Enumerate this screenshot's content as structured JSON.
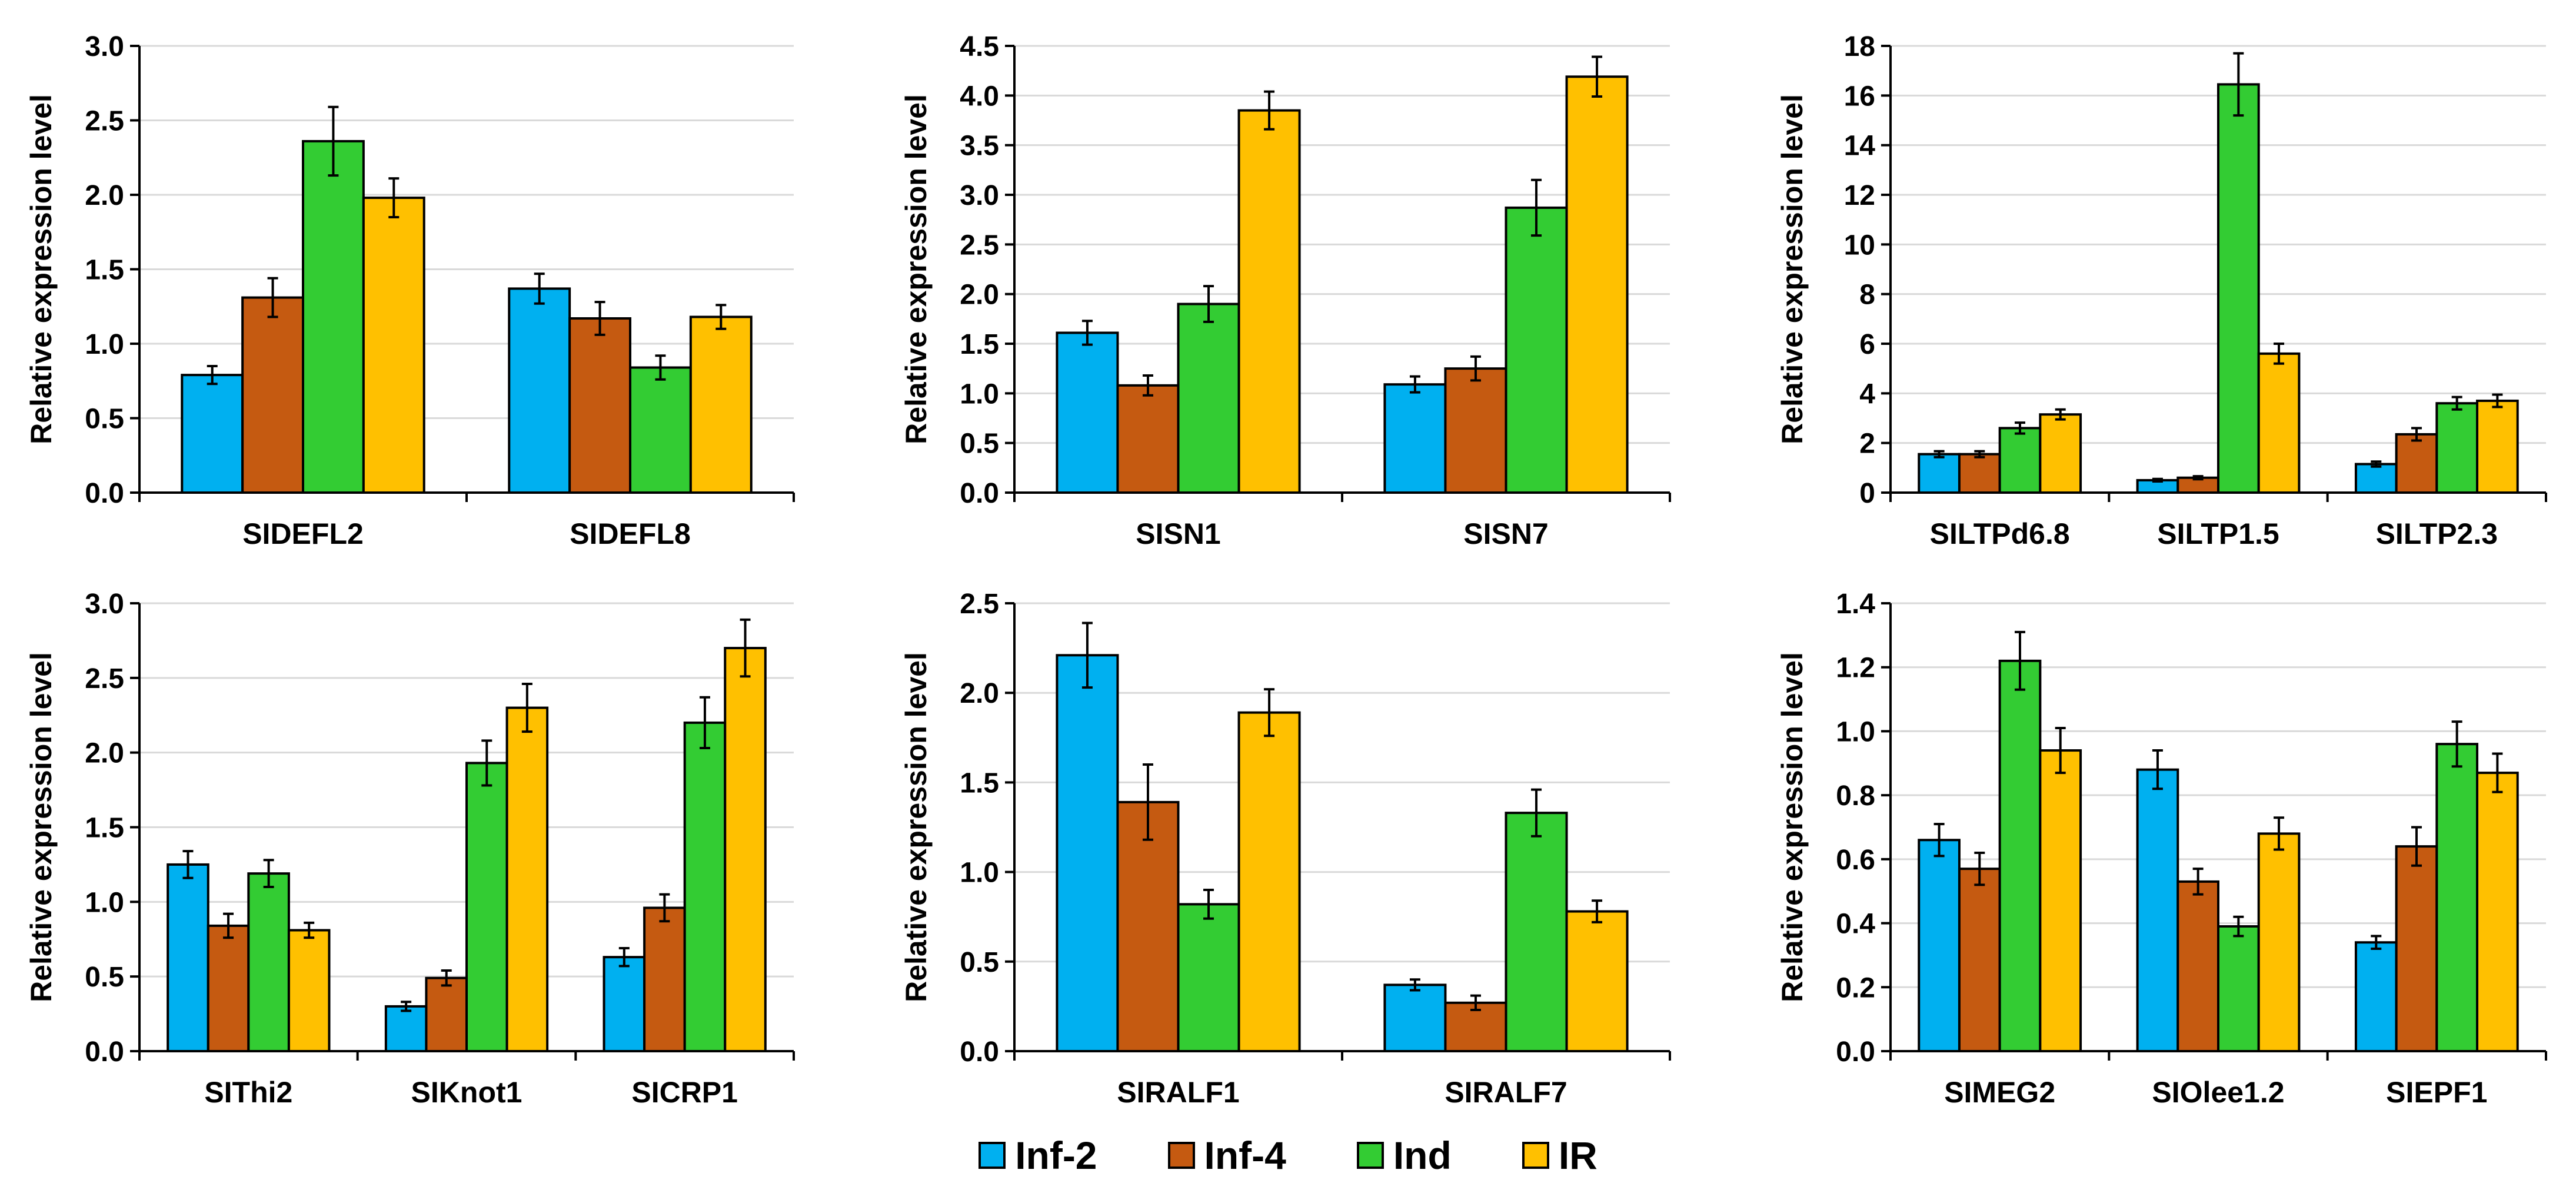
{
  "colors": {
    "Inf-2": "#00B0F0",
    "Inf-4": "#C55A11",
    "Ind": "#33CC33",
    "IR": "#FFC000"
  },
  "legend": [
    {
      "name": "Inf-2",
      "label": "Inf-2",
      "color": "#00B0F0"
    },
    {
      "name": "Inf-4",
      "label": "Inf-4",
      "color": "#C55A11"
    },
    {
      "name": "Ind",
      "label": "Ind",
      "color": "#33CC33"
    },
    {
      "name": "IR",
      "label": "IR",
      "color": "#FFC000"
    }
  ],
  "chart_data": [
    {
      "type": "bar",
      "ylabel": "Relative expression level",
      "ylim": [
        0,
        3.0
      ],
      "yticks": [
        0.0,
        0.5,
        1.0,
        1.5,
        2.0,
        2.5,
        3.0
      ],
      "ytick_decimals": 1,
      "categories": [
        "SIDEFL2",
        "SIDEFL8"
      ],
      "series": [
        {
          "name": "Inf-2",
          "values": [
            0.79,
            1.37
          ],
          "errors": [
            0.06,
            0.1
          ]
        },
        {
          "name": "Inf-4",
          "values": [
            1.31,
            1.17
          ],
          "errors": [
            0.13,
            0.11
          ]
        },
        {
          "name": "Ind",
          "values": [
            2.36,
            0.84
          ],
          "errors": [
            0.23,
            0.08
          ]
        },
        {
          "name": "IR",
          "values": [
            1.98,
            1.18
          ],
          "errors": [
            0.13,
            0.08
          ]
        }
      ]
    },
    {
      "type": "bar",
      "ylabel": "Relative expression level",
      "ylim": [
        0,
        4.5
      ],
      "yticks": [
        0.0,
        0.5,
        1.0,
        1.5,
        2.0,
        2.5,
        3.0,
        3.5,
        4.0,
        4.5
      ],
      "ytick_decimals": 1,
      "categories": [
        "SISN1",
        "SISN7"
      ],
      "series": [
        {
          "name": "Inf-2",
          "values": [
            1.61,
            1.09
          ],
          "errors": [
            0.12,
            0.08
          ]
        },
        {
          "name": "Inf-4",
          "values": [
            1.08,
            1.25
          ],
          "errors": [
            0.1,
            0.12
          ]
        },
        {
          "name": "Ind",
          "values": [
            1.9,
            2.87
          ],
          "errors": [
            0.18,
            0.28
          ]
        },
        {
          "name": "IR",
          "values": [
            3.85,
            4.19
          ],
          "errors": [
            0.19,
            0.2
          ]
        }
      ]
    },
    {
      "type": "bar",
      "ylabel": "Relative expression level",
      "ylim": [
        0,
        18
      ],
      "yticks": [
        0,
        2,
        4,
        6,
        8,
        10,
        12,
        14,
        16,
        18
      ],
      "ytick_decimals": 0,
      "categories": [
        "SILTPd6.8",
        "SILTP1.5",
        "SILTP2.3"
      ],
      "series": [
        {
          "name": "Inf-2",
          "values": [
            1.55,
            0.5,
            1.15
          ],
          "errors": [
            0.12,
            0.05,
            0.1
          ]
        },
        {
          "name": "Inf-4",
          "values": [
            1.55,
            0.6,
            2.35
          ],
          "errors": [
            0.12,
            0.06,
            0.25
          ]
        },
        {
          "name": "Ind",
          "values": [
            2.6,
            16.45,
            3.6
          ],
          "errors": [
            0.22,
            1.25,
            0.25
          ]
        },
        {
          "name": "IR",
          "values": [
            3.15,
            5.6,
            3.7
          ],
          "errors": [
            0.2,
            0.4,
            0.25
          ]
        }
      ]
    },
    {
      "type": "bar",
      "ylabel": "Relative expression level",
      "ylim": [
        0,
        3.0
      ],
      "yticks": [
        0.0,
        0.5,
        1.0,
        1.5,
        2.0,
        2.5,
        3.0
      ],
      "ytick_decimals": 1,
      "categories": [
        "SIThi2",
        "SIKnot1",
        "SICRP1"
      ],
      "series": [
        {
          "name": "Inf-2",
          "values": [
            1.25,
            0.3,
            0.63
          ],
          "errors": [
            0.09,
            0.03,
            0.06
          ]
        },
        {
          "name": "Inf-4",
          "values": [
            0.84,
            0.49,
            0.96
          ],
          "errors": [
            0.08,
            0.05,
            0.09
          ]
        },
        {
          "name": "Ind",
          "values": [
            1.19,
            1.93,
            2.2
          ],
          "errors": [
            0.09,
            0.15,
            0.17
          ]
        },
        {
          "name": "IR",
          "values": [
            0.81,
            2.3,
            2.7
          ],
          "errors": [
            0.05,
            0.16,
            0.19
          ]
        }
      ]
    },
    {
      "type": "bar",
      "ylabel": "Relative expression level",
      "ylim": [
        0,
        2.5
      ],
      "yticks": [
        0.0,
        0.5,
        1.0,
        1.5,
        2.0,
        2.5
      ],
      "ytick_decimals": 1,
      "categories": [
        "SIRALF1",
        "SIRALF7"
      ],
      "series": [
        {
          "name": "Inf-2",
          "values": [
            2.21,
            0.37
          ],
          "errors": [
            0.18,
            0.03
          ]
        },
        {
          "name": "Inf-4",
          "values": [
            1.39,
            0.27
          ],
          "errors": [
            0.21,
            0.04
          ]
        },
        {
          "name": "Ind",
          "values": [
            0.82,
            1.33
          ],
          "errors": [
            0.08,
            0.13
          ]
        },
        {
          "name": "IR",
          "values": [
            1.89,
            0.78
          ],
          "errors": [
            0.13,
            0.06
          ]
        }
      ]
    },
    {
      "type": "bar",
      "ylabel": "Relative expression level",
      "ylim": [
        0,
        1.4
      ],
      "yticks": [
        0.0,
        0.2,
        0.4,
        0.6,
        0.8,
        1.0,
        1.2,
        1.4
      ],
      "ytick_decimals": 1,
      "categories": [
        "SIMEG2",
        "SIOlee1.2",
        "SIEPF1"
      ],
      "series": [
        {
          "name": "Inf-2",
          "values": [
            0.66,
            0.88,
            0.34
          ],
          "errors": [
            0.05,
            0.06,
            0.02
          ]
        },
        {
          "name": "Inf-4",
          "values": [
            0.57,
            0.53,
            0.64
          ],
          "errors": [
            0.05,
            0.04,
            0.06
          ]
        },
        {
          "name": "Ind",
          "values": [
            1.22,
            0.39,
            0.96
          ],
          "errors": [
            0.09,
            0.03,
            0.07
          ]
        },
        {
          "name": "IR",
          "values": [
            0.94,
            0.68,
            0.87
          ],
          "errors": [
            0.07,
            0.05,
            0.06
          ]
        }
      ]
    }
  ]
}
